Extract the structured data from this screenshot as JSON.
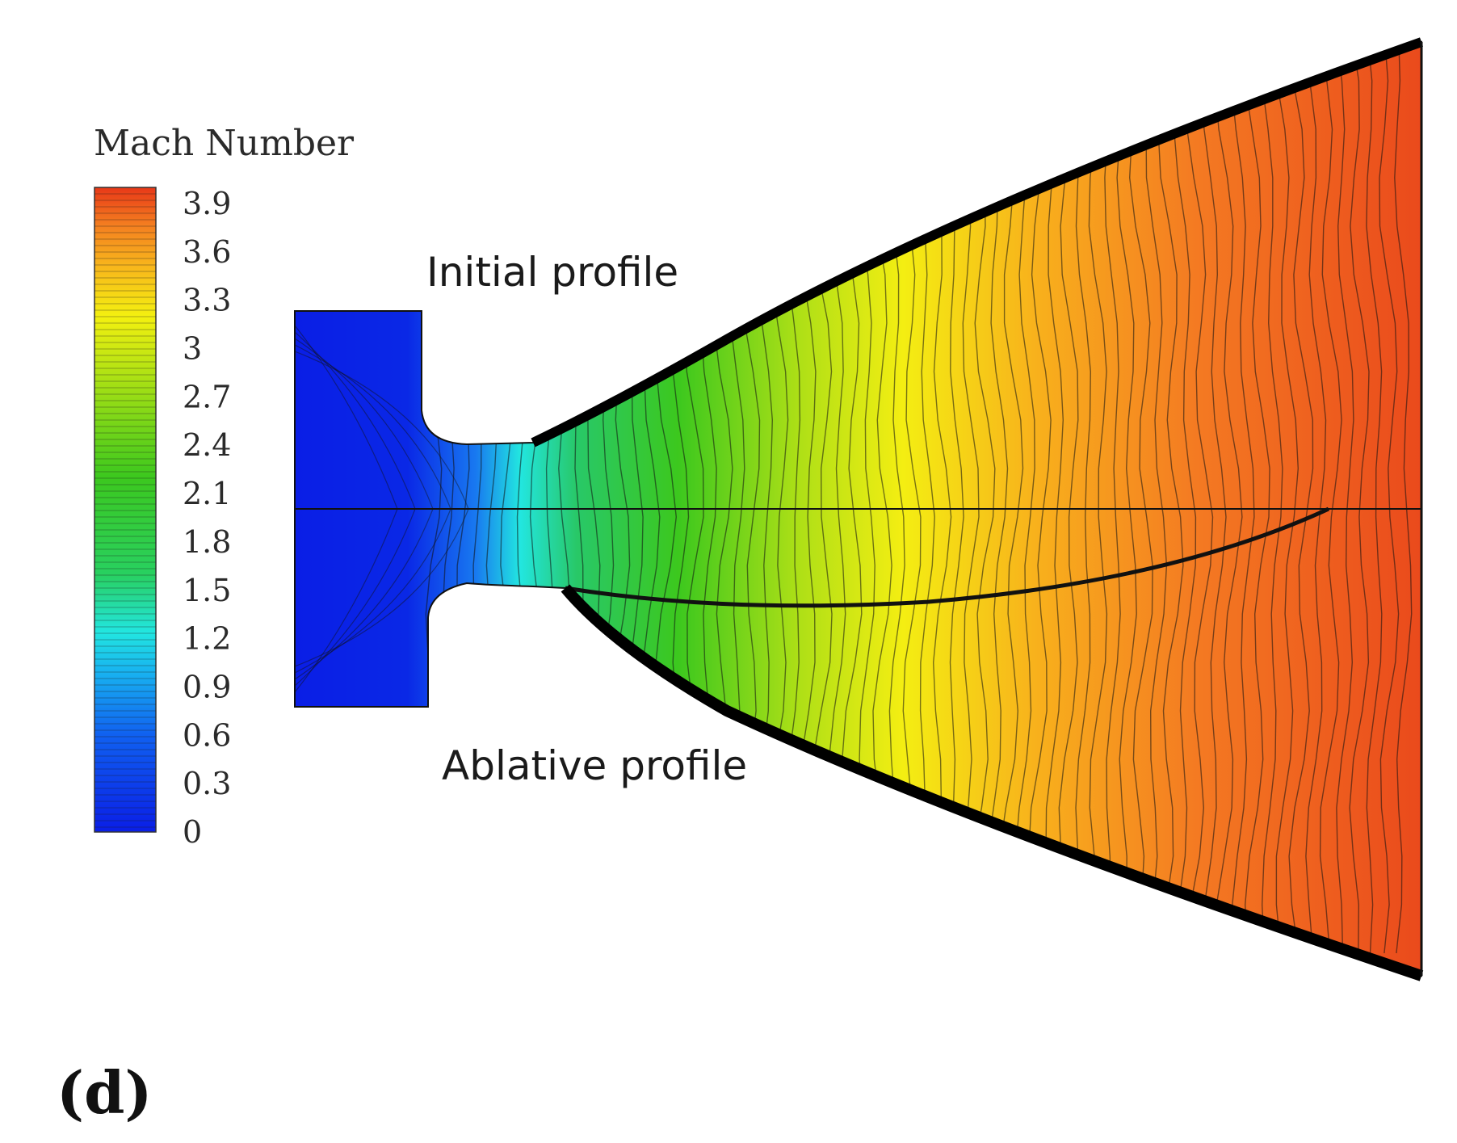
{
  "legend": {
    "title": "Mach Number",
    "ticks": [
      "3.9",
      "3.6",
      "3.3",
      "3",
      "2.7",
      "2.4",
      "2.1",
      "1.8",
      "1.5",
      "1.2",
      "0.9",
      "0.6",
      "0.3",
      "0"
    ],
    "tick_values": [
      3.9,
      3.6,
      3.3,
      3.0,
      2.7,
      2.4,
      2.1,
      1.8,
      1.5,
      1.2,
      0.9,
      0.6,
      0.3,
      0.0
    ],
    "range": [
      0,
      4.0
    ],
    "colormap": [
      "#0a1ee6",
      "#1060f0",
      "#18b4f0",
      "#20e8d8",
      "#28d060",
      "#3cc81e",
      "#a8e014",
      "#f4f010",
      "#f8b41c",
      "#f48020",
      "#ee5a1e",
      "#e83818"
    ]
  },
  "annotations": {
    "upper": "Initial profile",
    "lower": "Ablative profile"
  },
  "panel_label": "(d)"
}
